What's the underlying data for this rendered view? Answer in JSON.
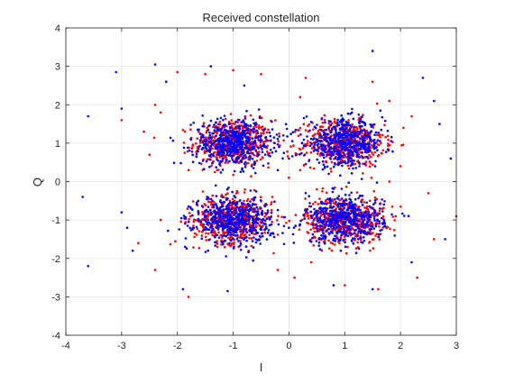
{
  "chart_data": {
    "type": "scatter",
    "title": "Received constellation",
    "xlabel": "I",
    "ylabel": "Q",
    "xlim": [
      -4,
      3
    ],
    "ylim": [
      -4,
      4
    ],
    "xticks": [
      -4,
      -3,
      -2,
      -1,
      0,
      1,
      2,
      3
    ],
    "yticks": [
      -4,
      -3,
      -2,
      -1,
      0,
      1,
      2,
      3,
      4
    ],
    "grid": true,
    "legend": "none",
    "colors": {
      "series_a": "#ff0000",
      "series_b": "#0000ff",
      "axes": "#262626",
      "grid": "#e6e6e6"
    },
    "clusters": [
      {
        "center": [
          -1.0,
          1.0
        ],
        "std": [
          0.35,
          0.3
        ]
      },
      {
        "center": [
          1.0,
          1.0
        ],
        "std": [
          0.35,
          0.3
        ]
      },
      {
        "center": [
          -1.0,
          -1.0
        ],
        "std": [
          0.35,
          0.3
        ]
      },
      {
        "center": [
          1.0,
          -1.0
        ],
        "std": [
          0.35,
          0.3
        ]
      }
    ],
    "series": [
      {
        "color": "#ff0000",
        "outliers": [
          [
            -2.4,
            2.0
          ],
          [
            -2.0,
            2.85
          ],
          [
            -1.0,
            2.9
          ],
          [
            -0.5,
            2.8
          ],
          [
            0.3,
            2.7
          ],
          [
            0.2,
            2.2
          ],
          [
            -3.0,
            1.6
          ],
          [
            -2.6,
            1.3
          ],
          [
            -2.3,
            1.8
          ],
          [
            0.0,
            0.1
          ],
          [
            -1.8,
            0.3
          ],
          [
            1.8,
            0.0
          ],
          [
            2.0,
            0.4
          ],
          [
            2.5,
            -0.3
          ],
          [
            3.0,
            -0.9
          ],
          [
            -2.3,
            -1.0
          ],
          [
            -2.7,
            -1.6
          ],
          [
            -2.4,
            -2.3
          ],
          [
            -1.8,
            -3.0
          ],
          [
            -0.2,
            -2.3
          ],
          [
            0.4,
            -2.1
          ],
          [
            1.0,
            -2.7
          ],
          [
            1.6,
            -2.8
          ],
          [
            2.3,
            -2.5
          ],
          [
            2.6,
            -1.5
          ],
          [
            1.8,
            2.1
          ],
          [
            2.2,
            1.7
          ],
          [
            -0.3,
            -0.4
          ],
          [
            0.2,
            0.3
          ],
          [
            0.5,
            -0.2
          ],
          [
            -1.5,
            2.8
          ],
          [
            -2.5,
            0.7
          ],
          [
            0.1,
            -2.5
          ],
          [
            1.5,
            2.6
          ]
        ]
      },
      {
        "color": "#0000ff",
        "outliers": [
          [
            -3.6,
            1.7
          ],
          [
            -3.6,
            -2.2
          ],
          [
            -3.7,
            -0.4
          ],
          [
            -3.1,
            2.85
          ],
          [
            -3.0,
            1.9
          ],
          [
            -2.4,
            3.05
          ],
          [
            -1.4,
            3.0
          ],
          [
            1.5,
            3.4
          ],
          [
            2.4,
            2.7
          ],
          [
            2.7,
            1.5
          ],
          [
            2.9,
            0.6
          ],
          [
            2.8,
            -1.5
          ],
          [
            2.2,
            -2.1
          ],
          [
            1.5,
            -2.8
          ],
          [
            -1.1,
            -2.85
          ],
          [
            -2.8,
            -1.8
          ],
          [
            -3.0,
            -0.8
          ],
          [
            -2.9,
            -1.2
          ],
          [
            -0.8,
            2.5
          ],
          [
            -0.1,
            1.2
          ],
          [
            0.0,
            -1.2
          ],
          [
            -0.2,
            0.3
          ],
          [
            0.3,
            -0.3
          ],
          [
            0.0,
            0.6
          ],
          [
            2.6,
            2.1
          ],
          [
            -2.2,
            2.6
          ],
          [
            -1.9,
            -2.8
          ],
          [
            0.8,
            -2.7
          ]
        ]
      }
    ]
  }
}
